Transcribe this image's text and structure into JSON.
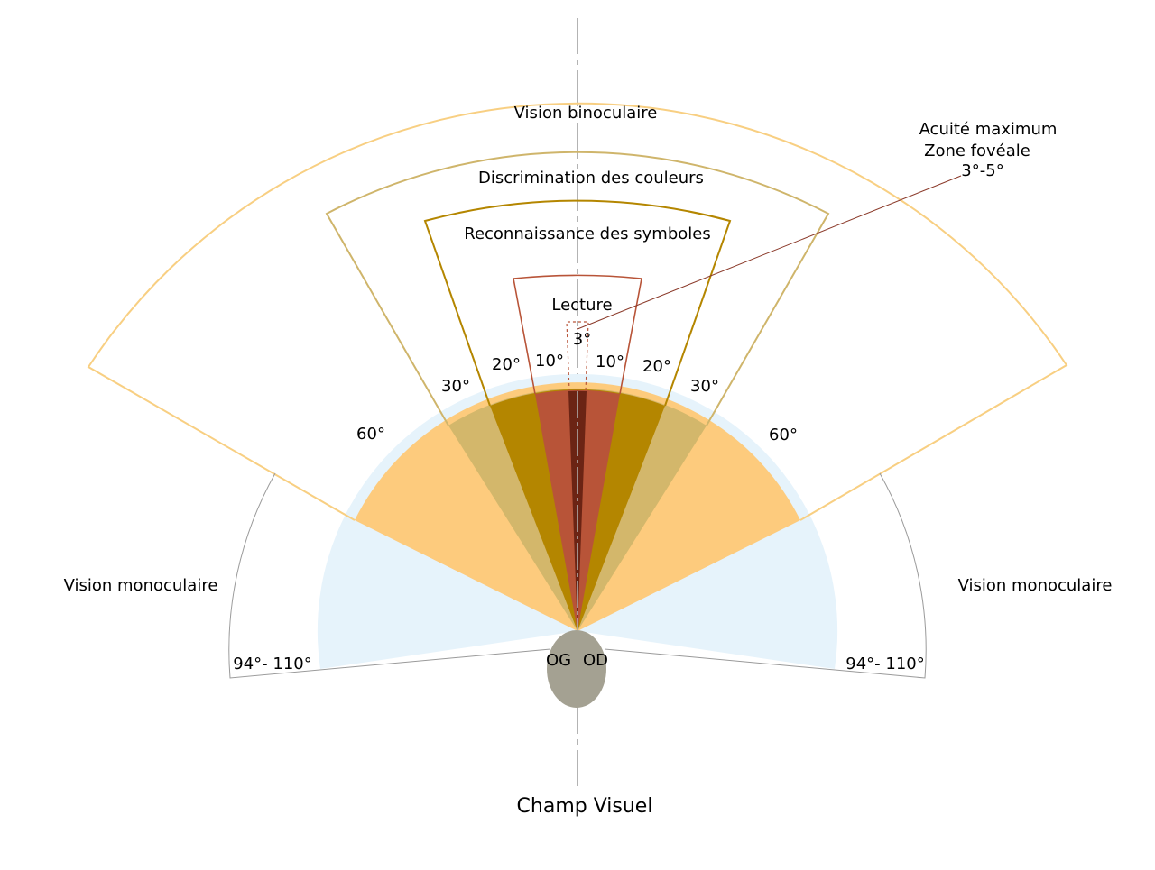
{
  "title": "Champ Visuel",
  "labels": {
    "binocular": "Vision binoculaire",
    "colors": "Discrimination des couleurs",
    "symbols": "Reconnaissance des symboles",
    "reading": "Lecture",
    "foveal_line1": "Acuité maximum",
    "foveal_line2": "Zone fovéale",
    "foveal_line3": "3°-5°",
    "monocular_left": "Vision monoculaire",
    "monocular_right": "Vision monoculaire",
    "left_eye": "OG",
    "right_eye": "OD"
  },
  "angles": {
    "fovea": "3°",
    "reading_left": "10°",
    "reading_right": "10°",
    "symbols_left": "20°",
    "symbols_right": "20°",
    "colors_left": "30°",
    "colors_right": "30°",
    "binocular_left": "60°",
    "binocular_right": "60°",
    "monocular_left": "94°- 110°",
    "monocular_right": "94°- 110°"
  },
  "colors": {
    "monocular_fill": "#e6f3fb",
    "binocular_fill": "#fdcb7d",
    "binocular_stroke": "#f8cf82",
    "colors_fill": "#d3b76b",
    "colors_stroke": "#cfb56b",
    "symbols_fill": "#b48600",
    "symbols_stroke": "#b48600",
    "reading_fill": "#b85438",
    "reading_stroke": "#b85438",
    "fovea_fill": "#6b2414",
    "eye_fill": "#a4a192",
    "axis": "#b3b3b3"
  }
}
